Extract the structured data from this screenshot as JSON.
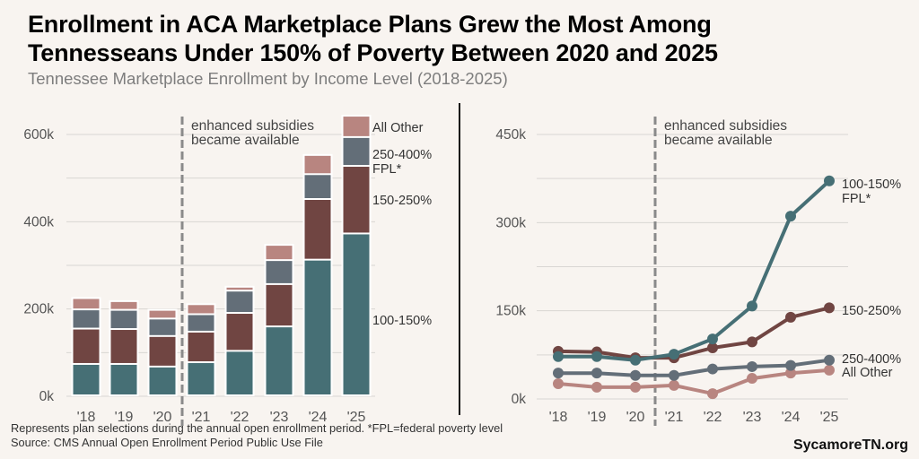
{
  "header": {
    "title_line1": "Enrollment in ACA Marketplace Plans Grew the Most Among",
    "title_line2": "Tennesseans Under 150% of Poverty Between 2020 and 2025",
    "subtitle": "Tennessee Marketplace Enrollment by Income Level (2018-2025)"
  },
  "footer": {
    "note": "Represents plan selections during the annual open enrollment period. *FPL=federal poverty level",
    "source": "Source: CMS Annual Open Enrollment Period Public Use File",
    "brand": "SycamoreTN.org"
  },
  "colors": {
    "fpl_100_150": "#466f75",
    "fpl_150_250": "#704542",
    "fpl_250_400": "#636e78",
    "all_other": "#b88580",
    "annotation_line": "#8a8a8a",
    "grid": "#d9d6d3"
  },
  "chart_data": [
    {
      "type": "bar",
      "stacked": true,
      "title": "",
      "xlabel": "",
      "ylabel": "",
      "categories": [
        "'18",
        "'19",
        "'20",
        "'21",
        "'22",
        "'23",
        "'24",
        "'25"
      ],
      "ylim": [
        0,
        650000
      ],
      "yticks": [
        0,
        200000,
        400000,
        600000
      ],
      "ytick_labels": [
        "0k",
        "200k",
        "400k",
        "600k"
      ],
      "minor_gridlines": [
        100000,
        300000,
        500000
      ],
      "grid": true,
      "series": [
        {
          "name": "100-150%",
          "key": "fpl_100_150",
          "values": [
            72000,
            72000,
            66000,
            76000,
            102000,
            158000,
            311000,
            371000
          ]
        },
        {
          "name": "150-250%",
          "key": "fpl_150_250",
          "values": [
            81000,
            80000,
            70000,
            70000,
            87000,
            97000,
            139000,
            155000
          ]
        },
        {
          "name": "250-400% FPL*",
          "key": "fpl_250_400",
          "values": [
            44000,
            44000,
            40000,
            40000,
            51000,
            55000,
            57000,
            66000
          ]
        },
        {
          "name": "All Other",
          "key": "all_other",
          "values": [
            26000,
            20000,
            20000,
            23000,
            9000,
            35000,
            44000,
            49000
          ]
        }
      ],
      "legend_labels": [
        {
          "key": "all_other",
          "text": [
            "All Other"
          ]
        },
        {
          "key": "fpl_250_400",
          "text": [
            "250-400%",
            "FPL*"
          ]
        },
        {
          "key": "fpl_150_250",
          "text": [
            "150-250%"
          ]
        },
        {
          "key": "fpl_100_150",
          "text": [
            "100-150%"
          ]
        }
      ],
      "legend": "right",
      "annotation": {
        "after_category": "'20",
        "text": [
          "enhanced subsidies",
          "became available"
        ]
      }
    },
    {
      "type": "line",
      "title": "",
      "xlabel": "",
      "ylabel": "",
      "categories": [
        "'18",
        "'19",
        "'20",
        "'21",
        "'22",
        "'23",
        "'24",
        "'25"
      ],
      "ylim": [
        0,
        450000
      ],
      "yticks": [
        0,
        150000,
        300000,
        450000
      ],
      "ytick_labels": [
        "0k",
        "150k",
        "300k",
        "450k"
      ],
      "minor_gridlines": [
        75000,
        225000,
        375000
      ],
      "grid": true,
      "series": [
        {
          "name": "All Other",
          "key": "all_other",
          "values": [
            26000,
            20000,
            20000,
            23000,
            9000,
            35000,
            44000,
            49000
          ]
        },
        {
          "name": "250-400%",
          "key": "fpl_250_400",
          "values": [
            44000,
            44000,
            40000,
            40000,
            51000,
            55000,
            57000,
            66000
          ]
        },
        {
          "name": "150-250%",
          "key": "fpl_150_250",
          "values": [
            81000,
            80000,
            70000,
            70000,
            87000,
            97000,
            139000,
            155000
          ]
        },
        {
          "name": "100-150% FPL*",
          "key": "fpl_100_150",
          "values": [
            72000,
            72000,
            66000,
            76000,
            102000,
            158000,
            311000,
            371000
          ]
        }
      ],
      "end_labels": [
        {
          "key": "fpl_100_150",
          "text": [
            "100-150%",
            "FPL*"
          ]
        },
        {
          "key": "fpl_150_250",
          "text": [
            "150-250%"
          ]
        },
        {
          "key": "fpl_250_400",
          "text": [
            "250-400%"
          ]
        },
        {
          "key": "all_other",
          "text": [
            "All Other"
          ]
        }
      ],
      "legend": "right (end-of-line labels)",
      "annotation": {
        "after_category": "'20",
        "text": [
          "enhanced subsidies",
          "became available"
        ]
      }
    }
  ]
}
